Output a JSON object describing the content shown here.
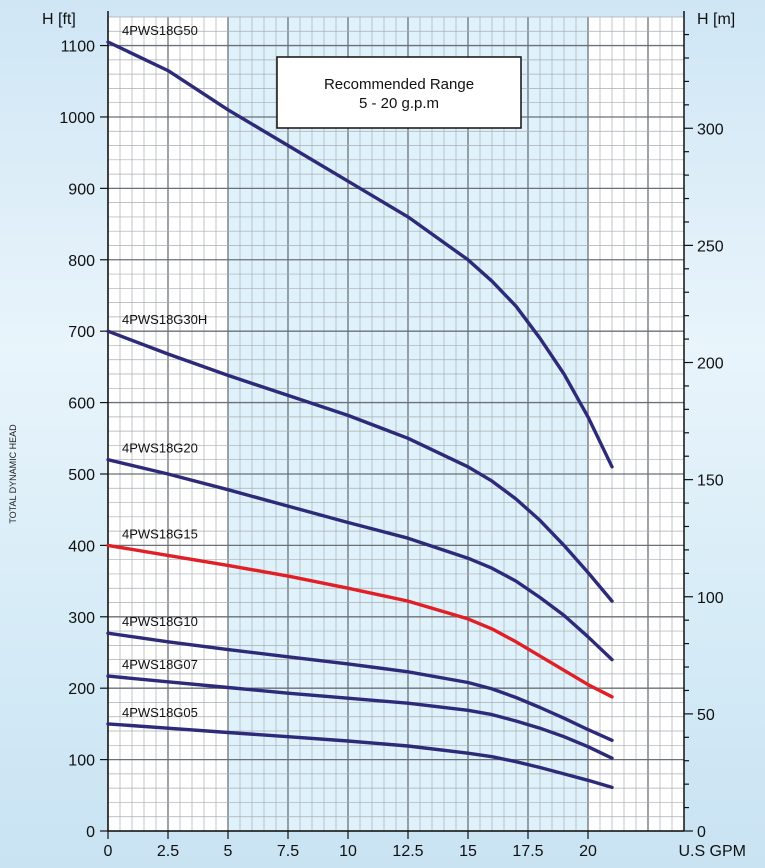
{
  "chart_data": {
    "type": "line",
    "xlabel": "U.S GPM",
    "ylabel_left": "H [ft]",
    "ylabel_right": "H [m]",
    "side_label": "TOTAL DYNAMIC HEAD",
    "xlim": [
      0,
      24
    ],
    "ylim": [
      0,
      1140
    ],
    "y2lim": [
      0,
      347.5
    ],
    "x_ticks": [
      0,
      2.5,
      5,
      7.5,
      10,
      12.5,
      15,
      17.5,
      20
    ],
    "x_tick_labels": [
      "0",
      "2.5",
      "5",
      "7.5",
      "10",
      "12.5",
      "15",
      "17.5",
      "20"
    ],
    "y_ticks": [
      0,
      100,
      200,
      300,
      400,
      500,
      600,
      700,
      800,
      900,
      1000,
      1100
    ],
    "y_tick_labels": [
      "0",
      "100",
      "200",
      "300",
      "400",
      "500",
      "600",
      "700",
      "800",
      "900",
      "1000",
      "1100"
    ],
    "y2_ticks": [
      0,
      50,
      100,
      150,
      200,
      250,
      300
    ],
    "y2_tick_labels": [
      "0",
      "50",
      "100",
      "150",
      "200",
      "250",
      "300"
    ],
    "grid": true,
    "recommended_range": {
      "x_from": 5,
      "x_to": 20,
      "title": "Recommended Range",
      "subtitle": "5 - 20 g.p.m"
    },
    "series": [
      {
        "name": "4PWS18G50",
        "color": "#2e2a7a",
        "x": [
          0,
          2.5,
          5,
          7.5,
          10,
          12.5,
          15,
          16,
          17,
          18,
          19,
          20,
          21
        ],
        "y": [
          1105,
          1065,
          1010,
          960,
          910,
          860,
          800,
          770,
          735,
          690,
          640,
          580,
          510
        ]
      },
      {
        "name": "4PWS18G30H",
        "color": "#2e2a7a",
        "x": [
          0,
          2.5,
          5,
          7.5,
          10,
          12.5,
          15,
          16,
          17,
          18,
          19,
          20,
          21
        ],
        "y": [
          700,
          668,
          638,
          610,
          582,
          550,
          510,
          490,
          465,
          435,
          400,
          362,
          322
        ]
      },
      {
        "name": "4PWS18G20",
        "color": "#2e2a7a",
        "x": [
          0,
          2.5,
          5,
          7.5,
          10,
          12.5,
          15,
          16,
          17,
          18,
          19,
          20,
          21
        ],
        "y": [
          520,
          500,
          478,
          455,
          432,
          410,
          382,
          368,
          350,
          327,
          302,
          272,
          240
        ]
      },
      {
        "name": "4PWS18G15",
        "color": "#e01f26",
        "x": [
          0,
          2.5,
          5,
          7.5,
          10,
          12.5,
          15,
          16,
          17,
          18,
          19,
          20,
          21
        ],
        "y": [
          400,
          386,
          372,
          357,
          340,
          322,
          297,
          283,
          265,
          245,
          225,
          205,
          188
        ]
      },
      {
        "name": "4PWS18G10",
        "color": "#2e2a7a",
        "x": [
          0,
          2.5,
          5,
          7.5,
          10,
          12.5,
          15,
          16,
          17,
          18,
          19,
          20,
          21
        ],
        "y": [
          277,
          265,
          254,
          244,
          234,
          223,
          208,
          199,
          187,
          173,
          158,
          142,
          127
        ]
      },
      {
        "name": "4PWS18G07",
        "color": "#2e2a7a",
        "x": [
          0,
          2.5,
          5,
          7.5,
          10,
          12.5,
          15,
          16,
          17,
          18,
          19,
          20,
          21
        ],
        "y": [
          217,
          209,
          201,
          193,
          186,
          179,
          169,
          163,
          154,
          144,
          132,
          118,
          102
        ]
      },
      {
        "name": "4PWS18G05",
        "color": "#2e2a7a",
        "x": [
          0,
          2.5,
          5,
          7.5,
          10,
          12.5,
          15,
          16,
          17,
          18,
          19,
          20,
          21
        ],
        "y": [
          150,
          144,
          138,
          132,
          126,
          119,
          109,
          104,
          97,
          89,
          80,
          71,
          61
        ]
      }
    ]
  }
}
